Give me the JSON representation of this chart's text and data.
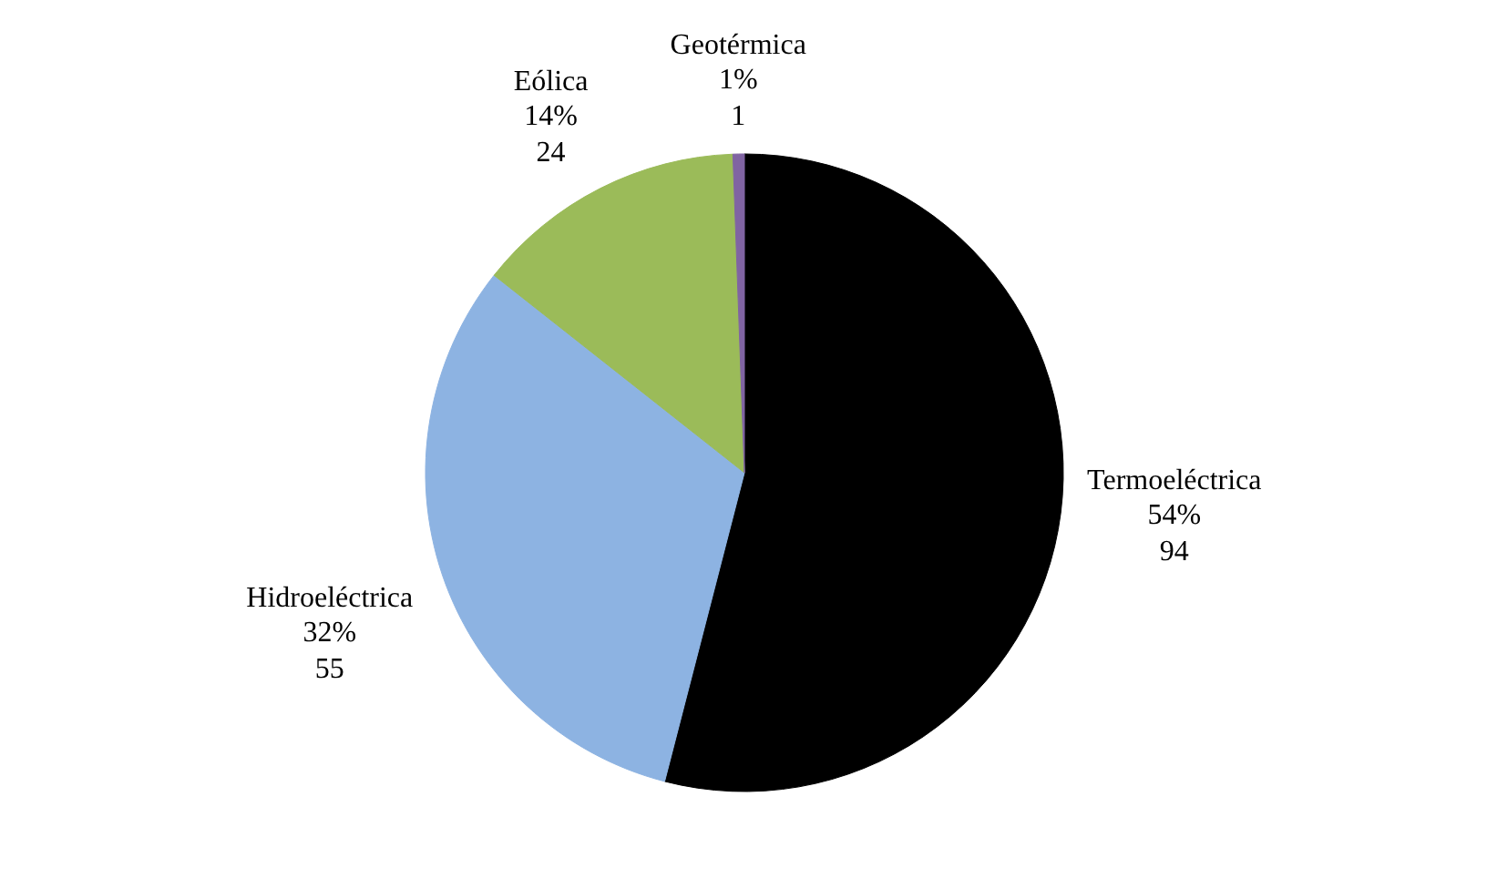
{
  "chart_data": {
    "type": "pie",
    "categories": [
      "Termoeléctrica",
      "Hidroeléctrica",
      "Eólica",
      "Geotérmica"
    ],
    "values": [
      94,
      55,
      24,
      1
    ],
    "colors": [
      "#000000",
      "#8db3e2",
      "#9bbb59",
      "#8064a2"
    ],
    "value_labels": [
      "54%\n94",
      "32%\n55",
      "14%\n24",
      "1%\n1"
    ]
  }
}
